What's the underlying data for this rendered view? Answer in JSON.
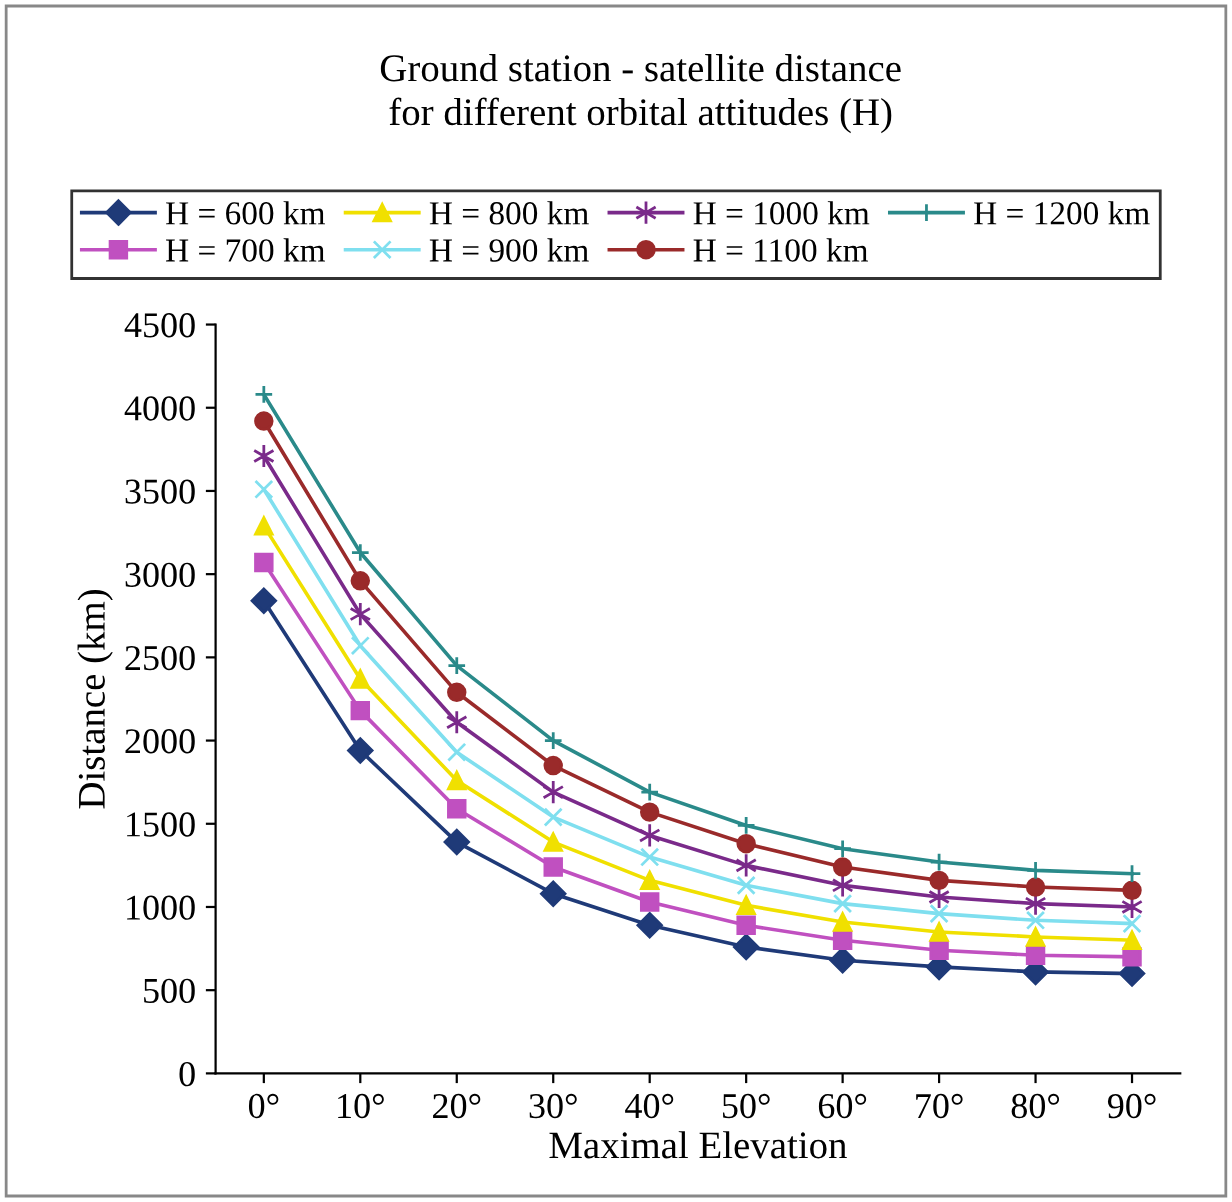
{
  "chart_data": {
    "type": "line",
    "title": "Ground station - satellite distance\nfor different orbital attitudes (H)",
    "xlabel": "Maximal Elevation",
    "ylabel": "Distance (km)",
    "categories": [
      "0°",
      "10°",
      "20°",
      "30°",
      "40°",
      "50°",
      "60°",
      "70°",
      "80°",
      "90°"
    ],
    "ylim": [
      0,
      4500
    ],
    "yticks": [
      0,
      500,
      1000,
      1500,
      2000,
      2500,
      3000,
      3500,
      4000,
      4500
    ],
    "grid": false,
    "legend": "top",
    "series": [
      {
        "name": "H = 600 km",
        "color": "#1f3a78",
        "marker": "diamond",
        "values": [
          2840,
          1940,
          1390,
          1080,
          890,
          760,
          680,
          640,
          610,
          600
        ]
      },
      {
        "name": "H = 700 km",
        "color": "#c050c0",
        "marker": "square",
        "values": [
          3070,
          2180,
          1590,
          1240,
          1030,
          890,
          800,
          740,
          710,
          700
        ]
      },
      {
        "name": "H = 800 km",
        "color": "#f0e000",
        "marker": "triangle",
        "values": [
          3290,
          2370,
          1760,
          1390,
          1160,
          1010,
          910,
          850,
          820,
          800
        ]
      },
      {
        "name": "H = 900 km",
        "color": "#7fdfef",
        "marker": "x",
        "values": [
          3510,
          2570,
          1930,
          1540,
          1300,
          1130,
          1020,
          960,
          920,
          900
        ]
      },
      {
        "name": "H = 1000 km",
        "color": "#7a2a8a",
        "marker": "cross",
        "values": [
          3710,
          2760,
          2110,
          1690,
          1430,
          1250,
          1130,
          1060,
          1020,
          1000
        ]
      },
      {
        "name": "H = 1100 km",
        "color": "#9a2a2a",
        "marker": "circle",
        "values": [
          3920,
          2960,
          2290,
          1850,
          1570,
          1380,
          1240,
          1160,
          1120,
          1100
        ]
      },
      {
        "name": "H = 1200 km",
        "color": "#2a8a8a",
        "marker": "plus",
        "values": [
          4080,
          3130,
          2450,
          2000,
          1690,
          1490,
          1350,
          1270,
          1220,
          1200
        ]
      }
    ]
  }
}
